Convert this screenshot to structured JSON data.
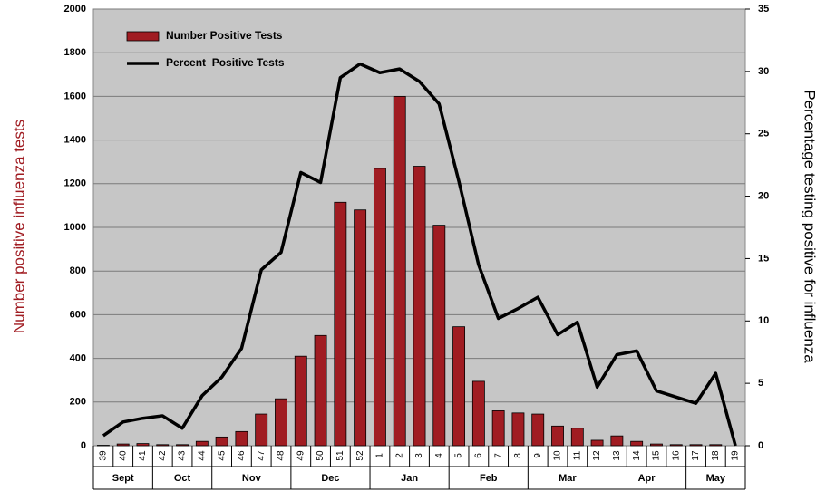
{
  "chart_data": {
    "type": "bar-line",
    "categories": [
      "39",
      "40",
      "41",
      "42",
      "43",
      "44",
      "45",
      "46",
      "47",
      "48",
      "49",
      "50",
      "51",
      "52",
      "1",
      "2",
      "3",
      "4",
      "5",
      "6",
      "7",
      "8",
      "9",
      "10",
      "11",
      "12",
      "13",
      "14",
      "15",
      "16",
      "17",
      "18",
      "19"
    ],
    "category_months": [
      "Sept",
      "Sept",
      "Sept",
      "Oct",
      "Oct",
      "Oct",
      "Nov",
      "Nov",
      "Nov",
      "Nov",
      "Dec",
      "Dec",
      "Dec",
      "Dec",
      "Jan",
      "Jan",
      "Jan",
      "Jan",
      "Feb",
      "Feb",
      "Feb",
      "Feb",
      "Mar",
      "Mar",
      "Mar",
      "Mar",
      "Apr",
      "Apr",
      "Apr",
      "Apr",
      "May",
      "May",
      "May"
    ],
    "series": [
      {
        "name": "Number Positive Tests",
        "type": "bar",
        "color": "#a01c22",
        "axis": "y",
        "values": [
          2,
          8,
          10,
          5,
          5,
          20,
          40,
          65,
          145,
          215,
          410,
          505,
          1115,
          1080,
          1270,
          1600,
          1280,
          1010,
          545,
          295,
          160,
          150,
          145,
          90,
          80,
          25,
          45,
          20,
          8,
          5,
          5,
          5,
          0
        ]
      },
      {
        "name": "Percent  Positive Tests",
        "type": "line",
        "color": "#000000",
        "axis": "y2",
        "values": [
          0.8,
          1.9,
          2.2,
          2.4,
          1.4,
          4.0,
          5.5,
          7.8,
          14.1,
          15.5,
          21.9,
          21.1,
          29.5,
          30.6,
          29.9,
          30.2,
          29.2,
          27.4,
          21.2,
          14.5,
          10.2,
          11.0,
          11.9,
          8.9,
          9.9,
          4.7,
          7.3,
          7.6,
          4.4,
          3.9,
          3.4,
          5.8,
          0
        ]
      }
    ],
    "y_label": "Number positive influenza tests",
    "y2_label": "Percentage testing positive for influenza",
    "ylim": [
      0,
      2000
    ],
    "yticks": [
      0,
      200,
      400,
      600,
      800,
      1000,
      1200,
      1400,
      1600,
      1800,
      2000
    ],
    "y2lim": [
      0,
      35
    ],
    "y2ticks": [
      0,
      5,
      10,
      15,
      20,
      25,
      30,
      35
    ],
    "grid": true,
    "legend": "upper left"
  }
}
